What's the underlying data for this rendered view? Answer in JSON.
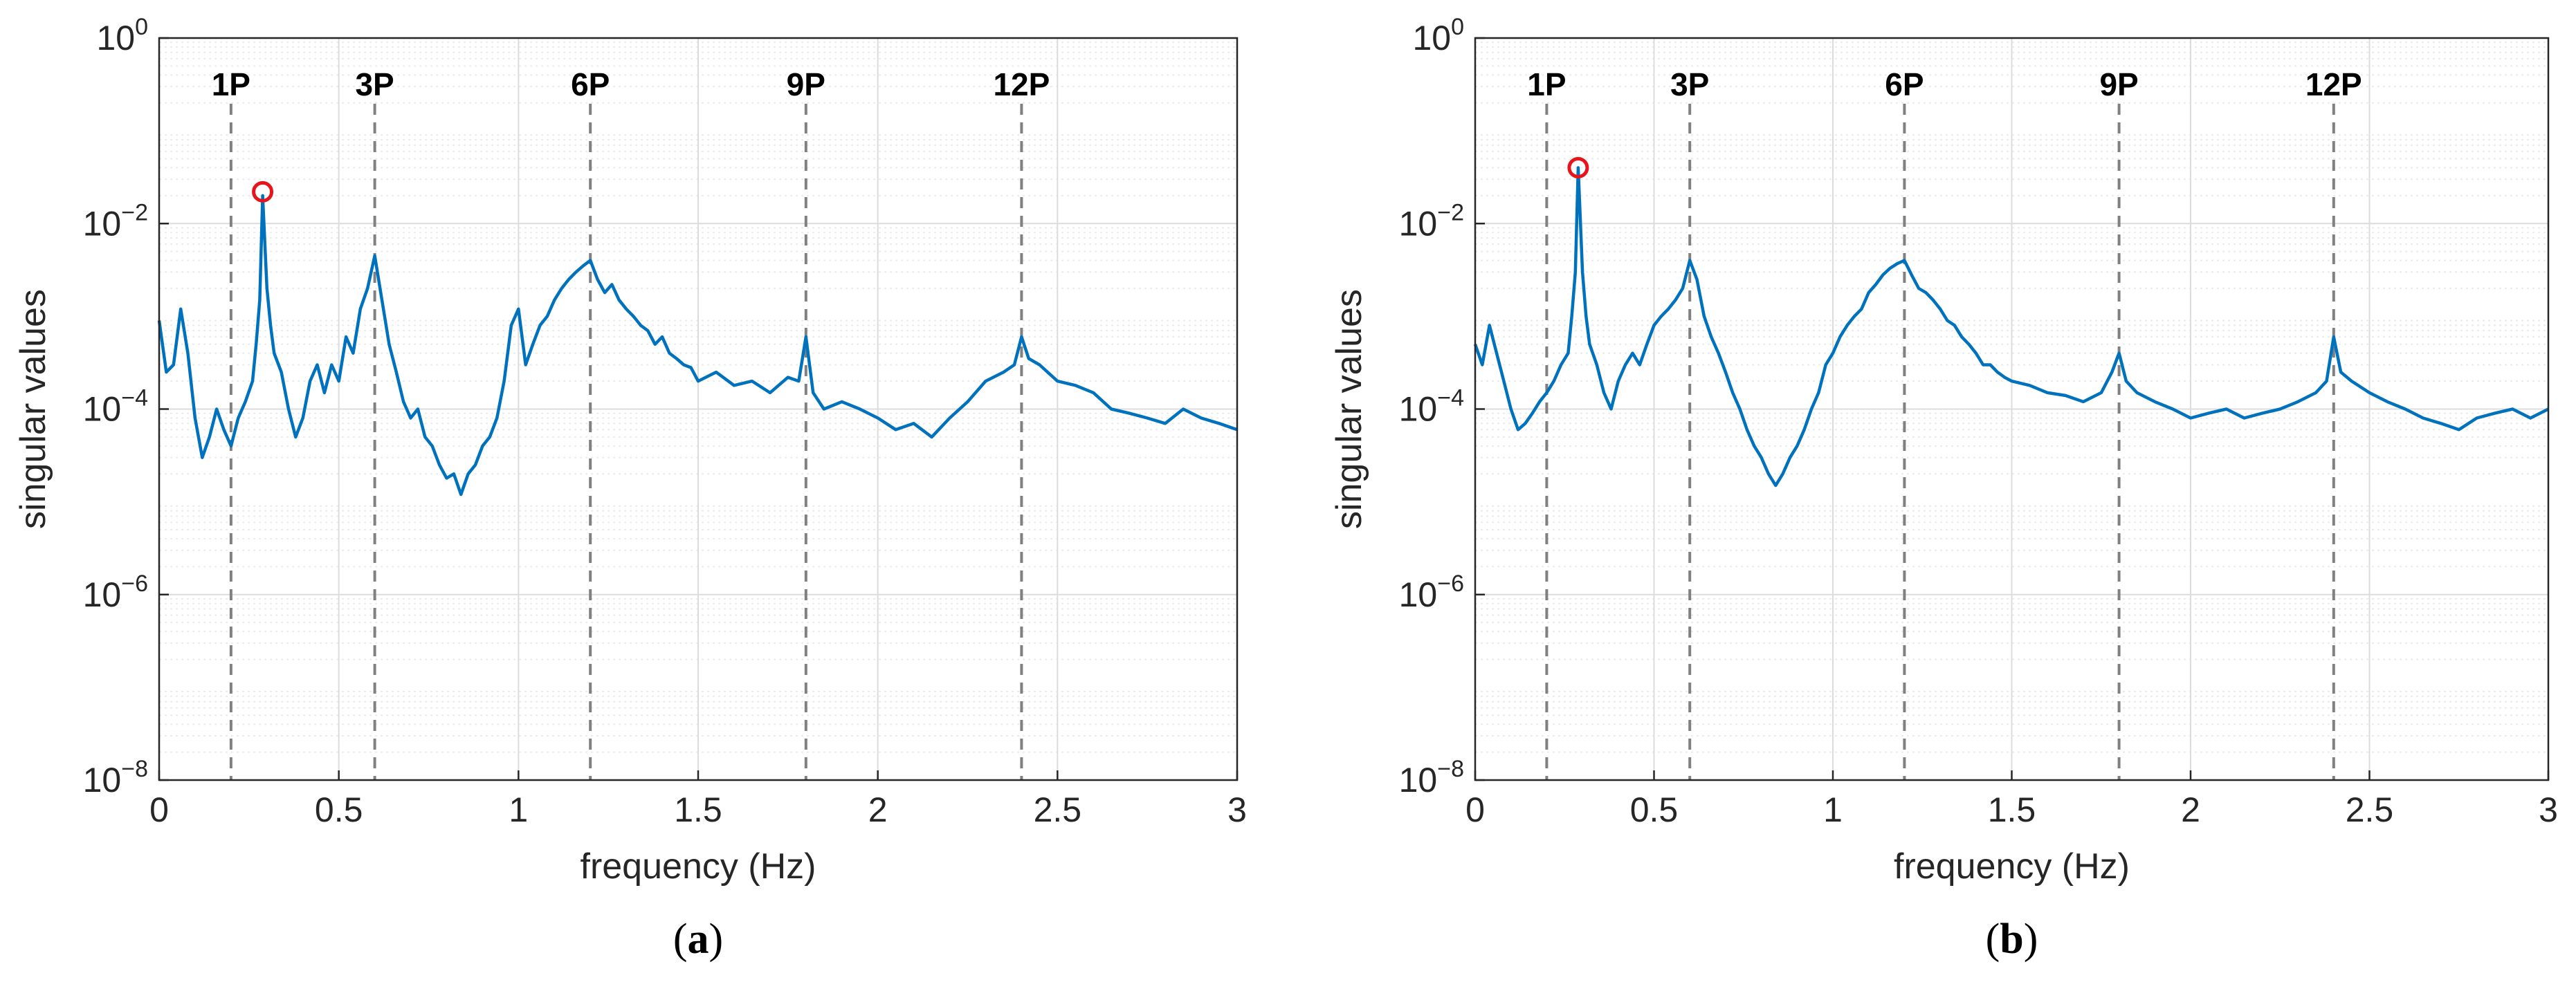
{
  "colors": {
    "signal": "#0072BD",
    "marker": "#E8141C",
    "harmonic_line": "#808080",
    "grid_major": "#DCDCDC",
    "grid_minor": "#EBEBEB",
    "axis": "#262626"
  },
  "chart_data": [
    {
      "type": "line",
      "panel_label": "a",
      "xlabel": "frequency (Hz)",
      "ylabel": "singular values",
      "xlim": [
        0,
        3
      ],
      "ylim": [
        1e-08,
        1
      ],
      "y_scale": "log",
      "grid": "on",
      "x_ticks": [
        "0",
        "0.5",
        "1",
        "1.5",
        "2",
        "2.5",
        "3"
      ],
      "y_ticks": [
        {
          "base": "10",
          "exp": "0",
          "value": 1
        },
        {
          "base": "10",
          "exp": "−2",
          "value": 0.01
        },
        {
          "base": "10",
          "exp": "−4",
          "value": 0.0001
        },
        {
          "base": "10",
          "exp": "−6",
          "value": 1e-06
        },
        {
          "base": "10",
          "exp": "−8",
          "value": 1e-08
        }
      ],
      "harmonics": [
        {
          "label": "1P",
          "x": 0.2
        },
        {
          "label": "3P",
          "x": 0.6
        },
        {
          "label": "6P",
          "x": 1.2
        },
        {
          "label": "9P",
          "x": 1.8
        },
        {
          "label": "12P",
          "x": 2.4
        }
      ],
      "peak_marker": {
        "x": 0.288,
        "y": 0.022
      },
      "series": [
        {
          "x": [
            0,
            0.02,
            0.04,
            0.06,
            0.08,
            0.1,
            0.12,
            0.14,
            0.16,
            0.18,
            0.2,
            0.22,
            0.24,
            0.26,
            0.27,
            0.28,
            0.288,
            0.3,
            0.31,
            0.32,
            0.34,
            0.36,
            0.38,
            0.4,
            0.42,
            0.44,
            0.46,
            0.48,
            0.5,
            0.52,
            0.54,
            0.56,
            0.58,
            0.6,
            0.62,
            0.64,
            0.66,
            0.68,
            0.7,
            0.72,
            0.74,
            0.76,
            0.78,
            0.8,
            0.82,
            0.84,
            0.86,
            0.88,
            0.9,
            0.92,
            0.94,
            0.96,
            0.98,
            1.0,
            1.02,
            1.04,
            1.06,
            1.08,
            1.1,
            1.12,
            1.14,
            1.16,
            1.18,
            1.2,
            1.22,
            1.24,
            1.26,
            1.28,
            1.3,
            1.32,
            1.34,
            1.36,
            1.38,
            1.4,
            1.42,
            1.44,
            1.46,
            1.48,
            1.5,
            1.55,
            1.6,
            1.65,
            1.7,
            1.75,
            1.78,
            1.8,
            1.82,
            1.85,
            1.9,
            1.95,
            2.0,
            2.05,
            2.1,
            2.15,
            2.2,
            2.25,
            2.3,
            2.35,
            2.38,
            2.4,
            2.42,
            2.45,
            2.5,
            2.55,
            2.6,
            2.65,
            2.7,
            2.75,
            2.8,
            2.85,
            2.9,
            2.95,
            3.0
          ],
          "y": [
            0.0009,
            0.00025,
            0.0003,
            0.0012,
            0.0004,
            8e-05,
            3e-05,
            5e-05,
            0.0001,
            6e-05,
            4e-05,
            8e-05,
            0.00012,
            0.0002,
            0.0005,
            0.0015,
            0.02,
            0.002,
            0.0008,
            0.0004,
            0.00025,
            0.0001,
            5e-05,
            8e-05,
            0.0002,
            0.0003,
            0.00015,
            0.0003,
            0.0002,
            0.0006,
            0.0004,
            0.0012,
            0.002,
            0.0045,
            0.0015,
            0.0005,
            0.00025,
            0.00012,
            8e-05,
            0.0001,
            5e-05,
            4e-05,
            2.5e-05,
            1.8e-05,
            2e-05,
            1.2e-05,
            2e-05,
            2.5e-05,
            4e-05,
            5e-05,
            8e-05,
            0.0002,
            0.0008,
            0.0012,
            0.0003,
            0.0005,
            0.0008,
            0.001,
            0.0015,
            0.002,
            0.0025,
            0.003,
            0.0035,
            0.004,
            0.0025,
            0.0018,
            0.0022,
            0.0015,
            0.0012,
            0.001,
            0.0008,
            0.0007,
            0.0005,
            0.0006,
            0.0004,
            0.00035,
            0.0003,
            0.00028,
            0.0002,
            0.00025,
            0.00018,
            0.0002,
            0.00015,
            0.00022,
            0.0002,
            0.0006,
            0.00015,
            0.0001,
            0.00012,
            0.0001,
            8e-05,
            6e-05,
            7e-05,
            5e-05,
            8e-05,
            0.00012,
            0.0002,
            0.00025,
            0.0003,
            0.0006,
            0.00035,
            0.0003,
            0.0002,
            0.00018,
            0.00015,
            0.0001,
            9e-05,
            8e-05,
            7e-05,
            0.0001,
            8e-05,
            7e-05,
            6e-05
          ]
        }
      ]
    },
    {
      "type": "line",
      "panel_label": "b",
      "xlabel": "frequency (Hz)",
      "ylabel": "singular values",
      "xlim": [
        0,
        3
      ],
      "ylim": [
        1e-08,
        1
      ],
      "y_scale": "log",
      "grid": "on",
      "x_ticks": [
        "0",
        "0.5",
        "1",
        "1.5",
        "2",
        "2.5",
        "3"
      ],
      "y_ticks": [
        {
          "base": "10",
          "exp": "0",
          "value": 1
        },
        {
          "base": "10",
          "exp": "−2",
          "value": 0.01
        },
        {
          "base": "10",
          "exp": "−4",
          "value": 0.0001
        },
        {
          "base": "10",
          "exp": "−6",
          "value": 1e-06
        },
        {
          "base": "10",
          "exp": "−8",
          "value": 1e-08
        }
      ],
      "harmonics": [
        {
          "label": "1P",
          "x": 0.2
        },
        {
          "label": "3P",
          "x": 0.6
        },
        {
          "label": "6P",
          "x": 1.2
        },
        {
          "label": "9P",
          "x": 1.8
        },
        {
          "label": "12P",
          "x": 2.4
        }
      ],
      "peak_marker": {
        "x": 0.288,
        "y": 0.04
      },
      "series": [
        {
          "x": [
            0,
            0.02,
            0.04,
            0.06,
            0.08,
            0.1,
            0.12,
            0.14,
            0.16,
            0.18,
            0.2,
            0.22,
            0.24,
            0.26,
            0.27,
            0.28,
            0.288,
            0.3,
            0.31,
            0.32,
            0.34,
            0.36,
            0.38,
            0.4,
            0.42,
            0.44,
            0.46,
            0.48,
            0.5,
            0.52,
            0.54,
            0.56,
            0.58,
            0.6,
            0.62,
            0.64,
            0.66,
            0.68,
            0.7,
            0.72,
            0.74,
            0.76,
            0.78,
            0.8,
            0.82,
            0.84,
            0.86,
            0.88,
            0.9,
            0.92,
            0.94,
            0.96,
            0.98,
            1.0,
            1.02,
            1.04,
            1.06,
            1.08,
            1.1,
            1.12,
            1.14,
            1.16,
            1.18,
            1.2,
            1.22,
            1.24,
            1.26,
            1.28,
            1.3,
            1.32,
            1.34,
            1.36,
            1.38,
            1.4,
            1.42,
            1.44,
            1.46,
            1.48,
            1.5,
            1.55,
            1.6,
            1.65,
            1.7,
            1.75,
            1.78,
            1.8,
            1.82,
            1.85,
            1.9,
            1.95,
            2.0,
            2.05,
            2.1,
            2.15,
            2.2,
            2.25,
            2.3,
            2.35,
            2.38,
            2.4,
            2.42,
            2.45,
            2.5,
            2.55,
            2.6,
            2.65,
            2.7,
            2.75,
            2.8,
            2.85,
            2.9,
            2.95,
            3.0
          ],
          "y": [
            0.0005,
            0.0003,
            0.0008,
            0.0004,
            0.0002,
            0.0001,
            6e-05,
            7e-05,
            9e-05,
            0.00012,
            0.00015,
            0.0002,
            0.0003,
            0.0004,
            0.001,
            0.003,
            0.04,
            0.003,
            0.001,
            0.0005,
            0.0003,
            0.00015,
            0.0001,
            0.0002,
            0.0003,
            0.0004,
            0.0003,
            0.0005,
            0.0008,
            0.001,
            0.0012,
            0.0015,
            0.002,
            0.004,
            0.0025,
            0.001,
            0.0006,
            0.0004,
            0.00025,
            0.00015,
            0.0001,
            6e-05,
            4e-05,
            3e-05,
            2e-05,
            1.5e-05,
            2e-05,
            3e-05,
            4e-05,
            6e-05,
            0.0001,
            0.00015,
            0.0003,
            0.0004,
            0.0006,
            0.0008,
            0.001,
            0.0012,
            0.0018,
            0.0022,
            0.0028,
            0.0033,
            0.0037,
            0.004,
            0.0028,
            0.002,
            0.0018,
            0.0015,
            0.0012,
            0.0009,
            0.0008,
            0.0006,
            0.0005,
            0.0004,
            0.0003,
            0.0003,
            0.00025,
            0.00022,
            0.0002,
            0.00018,
            0.00015,
            0.00014,
            0.00012,
            0.00015,
            0.00025,
            0.0004,
            0.0002,
            0.00015,
            0.00012,
            0.0001,
            8e-05,
            9e-05,
            0.0001,
            8e-05,
            9e-05,
            0.0001,
            0.00012,
            0.00015,
            0.0002,
            0.0006,
            0.00025,
            0.0002,
            0.00015,
            0.00012,
            0.0001,
            8e-05,
            7e-05,
            6e-05,
            8e-05,
            9e-05,
            0.0001,
            8e-05,
            0.0001
          ]
        }
      ]
    }
  ]
}
